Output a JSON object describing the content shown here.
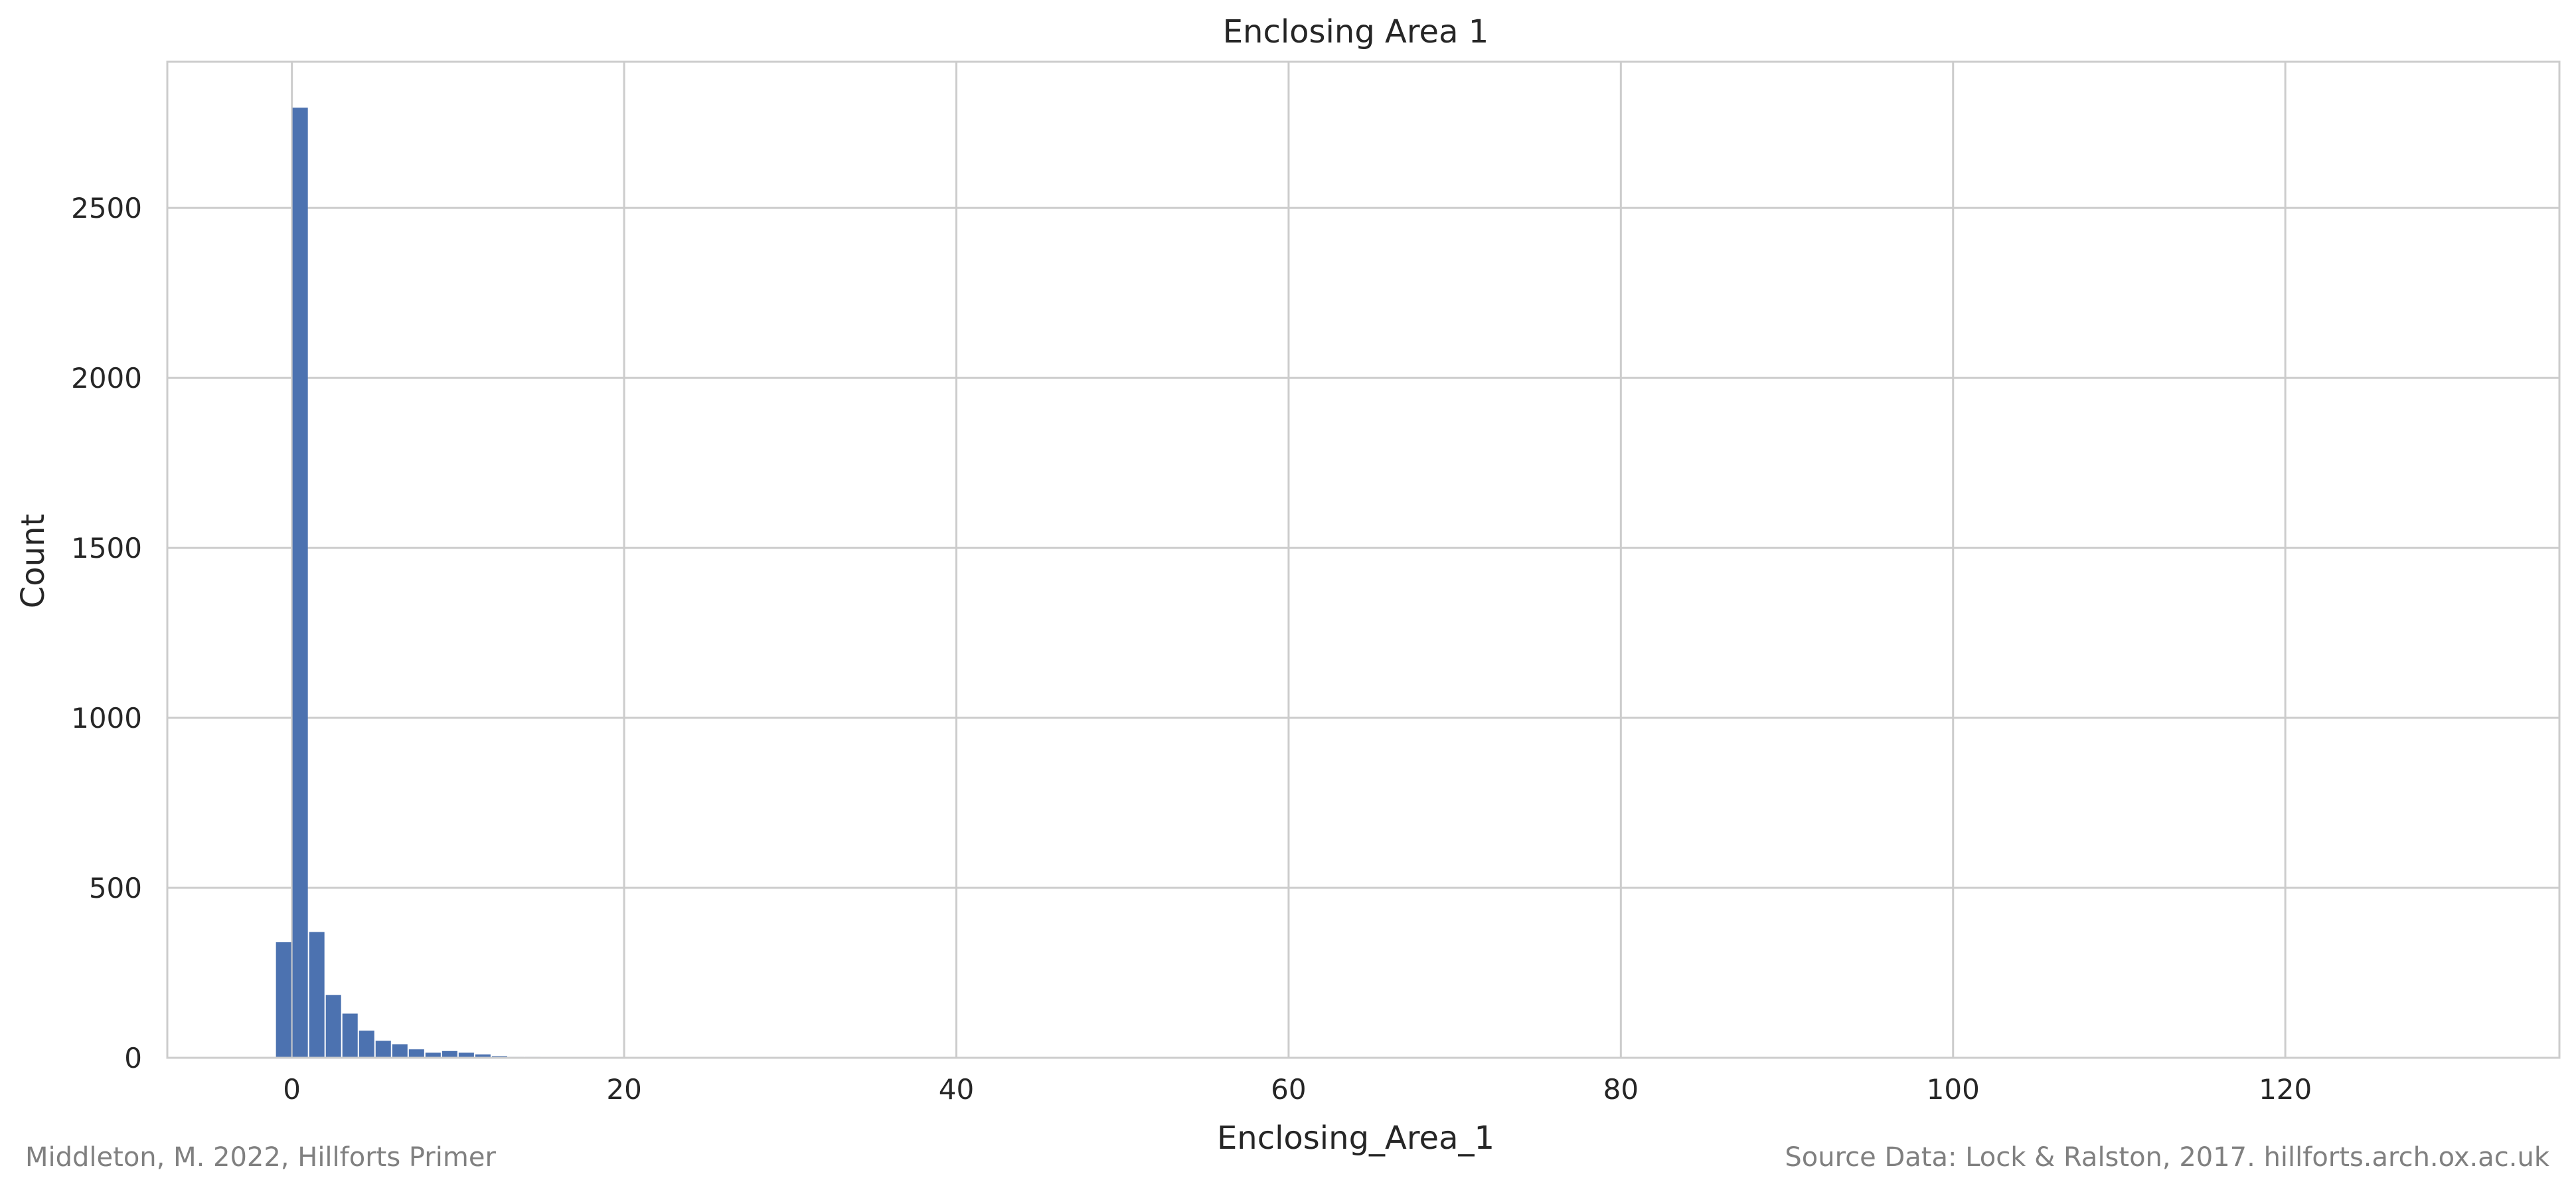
{
  "chart_data": {
    "type": "bar",
    "title": "Enclosing Area 1",
    "xlabel": "Enclosing_Area_1",
    "ylabel": "Count",
    "xlim": [
      -7.5,
      136.5
    ],
    "ylim": [
      0,
      2930
    ],
    "xticks": [
      0,
      20,
      40,
      60,
      80,
      100,
      120
    ],
    "yticks": [
      0,
      500,
      1000,
      1500,
      2000,
      2500
    ],
    "grid": true,
    "bin_width": 1.0,
    "bins": [
      {
        "x0": -1,
        "x1": 0,
        "value": 340
      },
      {
        "x0": 0,
        "x1": 1,
        "value": 2795
      },
      {
        "x0": 1,
        "x1": 2,
        "value": 370
      },
      {
        "x0": 2,
        "x1": 3,
        "value": 185
      },
      {
        "x0": 3,
        "x1": 4,
        "value": 130
      },
      {
        "x0": 4,
        "x1": 5,
        "value": 80
      },
      {
        "x0": 5,
        "x1": 6,
        "value": 50
      },
      {
        "x0": 6,
        "x1": 7,
        "value": 40
      },
      {
        "x0": 7,
        "x1": 8,
        "value": 25
      },
      {
        "x0": 8,
        "x1": 9,
        "value": 15
      },
      {
        "x0": 9,
        "x1": 10,
        "value": 20
      },
      {
        "x0": 10,
        "x1": 11,
        "value": 15
      },
      {
        "x0": 11,
        "x1": 12,
        "value": 10
      },
      {
        "x0": 12,
        "x1": 13,
        "value": 5
      },
      {
        "x0": 13,
        "x1": 14,
        "value": 3
      },
      {
        "x0": 14,
        "x1": 15,
        "value": 3
      },
      {
        "x0": 15,
        "x1": 16,
        "value": 2
      },
      {
        "x0": 16,
        "x1": 17,
        "value": 2
      },
      {
        "x0": 17,
        "x1": 18,
        "value": 1
      },
      {
        "x0": 18,
        "x1": 19,
        "value": 1
      },
      {
        "x0": 20,
        "x1": 21,
        "value": 1
      },
      {
        "x0": 22,
        "x1": 23,
        "value": 1
      },
      {
        "x0": 25,
        "x1": 26,
        "value": 1
      },
      {
        "x0": 28,
        "x1": 29,
        "value": 1
      },
      {
        "x0": 31,
        "x1": 32,
        "value": 1
      },
      {
        "x0": 37,
        "x1": 38,
        "value": 1
      },
      {
        "x0": 52,
        "x1": 53,
        "value": 1
      },
      {
        "x0": 60,
        "x1": 61,
        "value": 1
      },
      {
        "x0": 68,
        "x1": 69,
        "value": 1
      },
      {
        "x0": 87,
        "x1": 88,
        "value": 1
      },
      {
        "x0": 128,
        "x1": 129,
        "value": 1
      }
    ]
  },
  "colors": {
    "bar": "#4c72b0",
    "grid": "#cccccc",
    "axes_edge": "#cccccc",
    "text": "#262626",
    "footnote": "#808080"
  },
  "footnotes": {
    "left": "Middleton, M. 2022, Hillforts Primer",
    "right": "Source Data: Lock & Ralston, 2017. hillforts.arch.ox.ac.uk"
  }
}
